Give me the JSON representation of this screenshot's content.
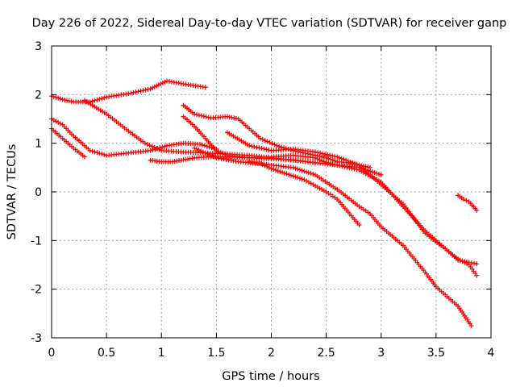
{
  "chart_data": {
    "type": "scatter",
    "title": "Day 226 of 2022, Sidereal Day-to-day VTEC variation (SDTVAR) for receiver ganp",
    "xlabel": "GPS time / hours",
    "ylabel": "SDTVAR / TECUs",
    "xlim": [
      0,
      4
    ],
    "ylim": [
      -3,
      3
    ],
    "xticks": [
      "0",
      "0.5",
      "1",
      "1.5",
      "2",
      "2.5",
      "3",
      "3.5",
      "4"
    ],
    "yticks": [
      "-3",
      "-2",
      "-1",
      "0",
      "1",
      "2",
      "3"
    ],
    "grid": true,
    "marker": "+",
    "color": "#ff0000",
    "series": [
      {
        "name": "track-1",
        "x": [
          0.0,
          0.1,
          0.2,
          0.35,
          0.5,
          0.7,
          0.9,
          1.05,
          1.2,
          1.4
        ],
        "y": [
          1.97,
          1.9,
          1.85,
          1.85,
          1.95,
          2.02,
          2.12,
          2.28,
          2.22,
          2.15
        ]
      },
      {
        "name": "track-2",
        "x": [
          0.0,
          0.1,
          0.2,
          0.3
        ],
        "y": [
          1.3,
          1.1,
          0.9,
          0.72
        ]
      },
      {
        "name": "track-3",
        "x": [
          0.0,
          0.1,
          0.2,
          0.35,
          0.5,
          0.7,
          0.9,
          1.05,
          1.2,
          1.35,
          1.5
        ],
        "y": [
          1.5,
          1.38,
          1.15,
          0.85,
          0.75,
          0.8,
          0.85,
          0.95,
          1.0,
          0.98,
          0.88
        ]
      },
      {
        "name": "track-4",
        "x": [
          0.3,
          0.5,
          0.7,
          0.85,
          1.0,
          1.2,
          1.4,
          1.6,
          1.8,
          2.0,
          2.2,
          2.4,
          2.6,
          2.8,
          3.0
        ],
        "y": [
          1.88,
          1.6,
          1.25,
          1.0,
          0.85,
          0.82,
          0.8,
          0.78,
          0.75,
          0.7,
          0.65,
          0.6,
          0.55,
          0.5,
          0.35
        ]
      },
      {
        "name": "track-5",
        "x": [
          0.9,
          1.0,
          1.1,
          1.2,
          1.3,
          1.45,
          1.6,
          1.8,
          2.0,
          2.2,
          2.4
        ],
        "y": [
          0.65,
          0.62,
          0.62,
          0.66,
          0.7,
          0.72,
          0.72,
          0.7,
          0.68,
          0.66,
          0.6
        ]
      },
      {
        "name": "track-6",
        "x": [
          1.2,
          1.3,
          1.45,
          1.6,
          1.7,
          1.8,
          1.9,
          2.05,
          2.2,
          2.4,
          2.5,
          2.6,
          2.7,
          2.8,
          2.9
        ],
        "y": [
          1.78,
          1.6,
          1.52,
          1.55,
          1.5,
          1.3,
          1.1,
          0.95,
          0.85,
          0.75,
          0.7,
          0.62,
          0.6,
          0.55,
          0.5
        ]
      },
      {
        "name": "track-7",
        "x": [
          1.2,
          1.3,
          1.4,
          1.5,
          1.6,
          1.8,
          2.0,
          2.2,
          2.4,
          2.5,
          2.6,
          2.8,
          3.0,
          3.2,
          3.4,
          3.6,
          3.7,
          3.8,
          3.87
        ],
        "y": [
          1.55,
          1.35,
          1.1,
          0.85,
          0.75,
          0.7,
          0.72,
          0.75,
          0.7,
          0.6,
          0.55,
          0.45,
          0.2,
          -0.3,
          -0.8,
          -1.2,
          -1.38,
          -1.5,
          -1.72
        ]
      },
      {
        "name": "track-8",
        "x": [
          1.3,
          1.5,
          1.7,
          1.9,
          2.0,
          2.1,
          2.3,
          2.5,
          2.6,
          2.8
        ],
        "y": [
          0.9,
          0.7,
          0.62,
          0.58,
          0.48,
          0.4,
          0.25,
          0.0,
          -0.15,
          -0.68
        ]
      },
      {
        "name": "track-9",
        "x": [
          1.6,
          1.8,
          2.0,
          2.2,
          2.4,
          2.6,
          2.8,
          3.0,
          3.2,
          3.4,
          3.6,
          3.7,
          3.8,
          3.87
        ],
        "y": [
          1.22,
          0.95,
          0.85,
          0.88,
          0.82,
          0.72,
          0.55,
          0.15,
          -0.25,
          -0.85,
          -1.2,
          -1.4,
          -1.45,
          -1.48
        ]
      },
      {
        "name": "track-10",
        "x": [
          1.8,
          2.0,
          2.2,
          2.4,
          2.6,
          2.8,
          2.9,
          3.0,
          3.2,
          3.4,
          3.5,
          3.6,
          3.7,
          3.82
        ],
        "y": [
          0.62,
          0.55,
          0.5,
          0.35,
          0.05,
          -0.3,
          -0.45,
          -0.72,
          -1.1,
          -1.65,
          -1.95,
          -2.15,
          -2.35,
          -2.75
        ]
      },
      {
        "name": "track-11",
        "x": [
          3.7,
          3.75,
          3.8,
          3.87
        ],
        "y": [
          -0.07,
          -0.15,
          -0.2,
          -0.38
        ]
      }
    ]
  }
}
